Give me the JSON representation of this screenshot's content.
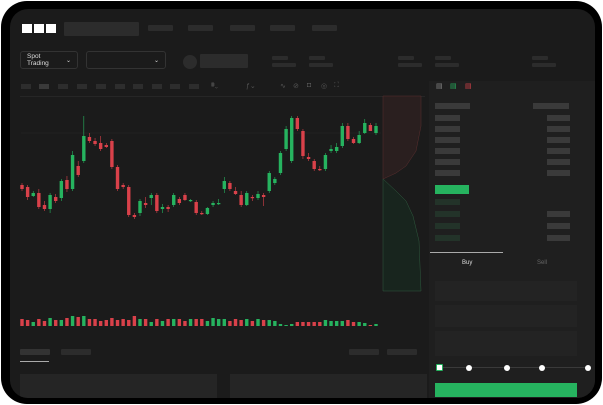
{
  "header": {
    "logo": "OKX"
  },
  "toolbar": {
    "market_selector": "Spot Trading"
  },
  "orderbook": {
    "view_icons": [
      "orderbook-both-icon",
      "orderbook-bids-icon",
      "orderbook-asks-icon"
    ]
  },
  "trade": {
    "tabs": [
      "Buy",
      "Sell"
    ],
    "active_tab": "Buy",
    "slider_value": 0
  },
  "colors": {
    "up": "#26b35f",
    "down": "#d9414a",
    "accent": "#26b35f"
  },
  "chart_data": {
    "type": "candlestick",
    "ohlc": [
      [
        116,
        118,
        110,
        112
      ],
      [
        114,
        116,
        101,
        104
      ],
      [
        105,
        110,
        104,
        108
      ],
      [
        108,
        112,
        92,
        94
      ],
      [
        96,
        100,
        90,
        92
      ],
      [
        92,
        108,
        88,
        106
      ],
      [
        104,
        107,
        98,
        100
      ],
      [
        103,
        122,
        100,
        120
      ],
      [
        121,
        125,
        109,
        112
      ],
      [
        112,
        150,
        110,
        146
      ],
      [
        135,
        140,
        124,
        126
      ],
      [
        140,
        185,
        138,
        165
      ],
      [
        164,
        168,
        158,
        160
      ],
      [
        160,
        163,
        155,
        157
      ],
      [
        158,
        165,
        150,
        152
      ],
      [
        156,
        158,
        153,
        154
      ],
      [
        160,
        162,
        132,
        134
      ],
      [
        134,
        136,
        110,
        112
      ],
      [
        116,
        118,
        112,
        114
      ],
      [
        114,
        116,
        84,
        86
      ],
      [
        86,
        88,
        82,
        84
      ],
      [
        88,
        102,
        85,
        100
      ],
      [
        98,
        104,
        93,
        96
      ],
      [
        103,
        108,
        96,
        106
      ],
      [
        106,
        108,
        88,
        90
      ],
      [
        92,
        97,
        88,
        94
      ],
      [
        94,
        96,
        89,
        92
      ],
      [
        96,
        108,
        94,
        106
      ],
      [
        102,
        104,
        96,
        98
      ],
      [
        106,
        108,
        100,
        101
      ],
      [
        100,
        102,
        99,
        101
      ],
      [
        99,
        101,
        86,
        88
      ],
      [
        88,
        90,
        86,
        87
      ],
      [
        87,
        94,
        86,
        93
      ],
      [
        96,
        100,
        94,
        98
      ],
      [
        98,
        102,
        96,
        98
      ],
      [
        112,
        124,
        108,
        120
      ],
      [
        118,
        120,
        110,
        112
      ],
      [
        110,
        114,
        106,
        107
      ],
      [
        106,
        110,
        94,
        96
      ],
      [
        96,
        110,
        95,
        108
      ],
      [
        104,
        106,
        100,
        103
      ],
      [
        103,
        110,
        101,
        107
      ],
      [
        106,
        108,
        95,
        104
      ],
      [
        110,
        130,
        108,
        128
      ],
      [
        118,
        124,
        116,
        122
      ],
      [
        128,
        150,
        126,
        148
      ],
      [
        152,
        175,
        150,
        172
      ],
      [
        140,
        185,
        138,
        183
      ],
      [
        183,
        185,
        170,
        172
      ],
      [
        170,
        172,
        142,
        145
      ],
      [
        144,
        148,
        140,
        142
      ],
      [
        140,
        142,
        130,
        132
      ],
      [
        132,
        135,
        130,
        131
      ],
      [
        132,
        148,
        130,
        146
      ],
      [
        150,
        156,
        148,
        152
      ],
      [
        150,
        158,
        148,
        154
      ],
      [
        155,
        178,
        153,
        175
      ],
      [
        175,
        178,
        160,
        162
      ],
      [
        162,
        164,
        157,
        158
      ],
      [
        158,
        170,
        157,
        166
      ],
      [
        168,
        182,
        167,
        178
      ],
      [
        176,
        178,
        170,
        170
      ],
      [
        168,
        178,
        166,
        175
      ]
    ],
    "volume": [
      7,
      6,
      4,
      7,
      5,
      8,
      6,
      6,
      8,
      10,
      9,
      10,
      7,
      7,
      5,
      6,
      8,
      6,
      7,
      6,
      10,
      7,
      7,
      4,
      7,
      5,
      7,
      7,
      7,
      5,
      7,
      7,
      7,
      5,
      8,
      7,
      7,
      5,
      7,
      6,
      7,
      5,
      7,
      6,
      6,
      5,
      2,
      1,
      2,
      4,
      4,
      4,
      4,
      4,
      6,
      5,
      5,
      5,
      6,
      4,
      4,
      3,
      1,
      2
    ],
    "ylim": [
      50,
      200
    ],
    "grid": false
  }
}
